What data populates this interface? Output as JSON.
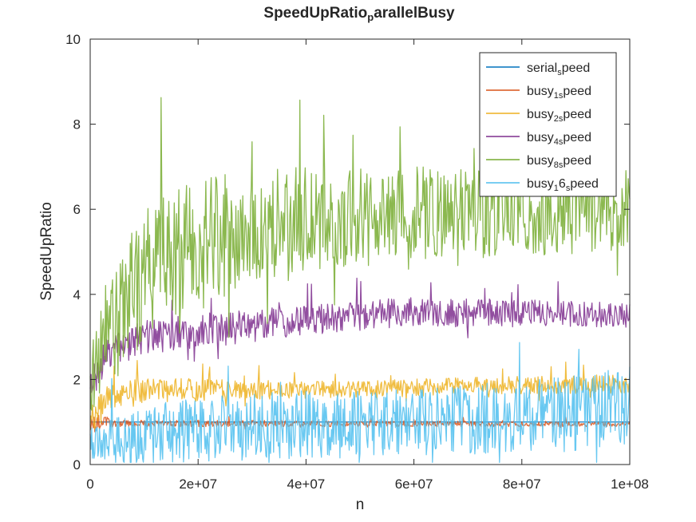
{
  "chart_data": {
    "type": "line",
    "title": {
      "main": "SpeedUpRatio",
      "sub": "p",
      "rest": "arallelBusy"
    },
    "xlabel": "n",
    "ylabel": "SpeedUpRatio",
    "xlim": [
      0,
      100000000
    ],
    "ylim": [
      0,
      10
    ],
    "xticks": [
      0,
      20000000,
      40000000,
      60000000,
      80000000,
      100000000
    ],
    "xtick_labels": [
      "0",
      "2e+07",
      "4e+07",
      "6e+07",
      "8e+07",
      "1e+08"
    ],
    "yticks": [
      0,
      2,
      4,
      6,
      8,
      10
    ],
    "ytick_labels": [
      "0",
      "2",
      "4",
      "6",
      "8",
      "10"
    ],
    "grid": false,
    "legend_position": "top-right",
    "points_per_series": 700,
    "series": [
      {
        "key": "serial",
        "legend": {
          "base": "serial",
          "sub": "s",
          "rest": "peed"
        },
        "color": "#0072bd",
        "envelope_x": [
          0,
          1000000,
          100000000
        ],
        "envelope_mean": [
          1,
          1,
          1
        ],
        "envelope_amplitude": [
          0,
          0,
          0
        ]
      },
      {
        "key": "busy1",
        "legend": {
          "base": "busy",
          "sub": "1s",
          "rest": "peed"
        },
        "color": "#d95319",
        "envelope_x": [
          0,
          2000000,
          5000000,
          100000000
        ],
        "envelope_mean": [
          0.9,
          1.0,
          0.97,
          0.95
        ],
        "envelope_amplitude": [
          0.3,
          0.15,
          0.08,
          0.06
        ]
      },
      {
        "key": "busy2",
        "legend": {
          "base": "busy",
          "sub": "2s",
          "rest": "peed"
        },
        "color": "#edb120",
        "envelope_x": [
          0,
          3000000,
          10000000,
          40000000,
          70000000,
          100000000
        ],
        "envelope_mean": [
          1.0,
          1.5,
          1.75,
          1.75,
          1.85,
          1.9
        ],
        "envelope_amplitude": [
          0.4,
          0.35,
          0.3,
          0.2,
          0.2,
          0.22
        ]
      },
      {
        "key": "busy4",
        "legend": {
          "base": "busy",
          "sub": "4s",
          "rest": "peed"
        },
        "color": "#7e2f8e",
        "envelope_x": [
          0,
          3000000,
          10000000,
          25000000,
          40000000,
          60000000,
          100000000
        ],
        "envelope_mean": [
          1.8,
          2.6,
          3.0,
          3.2,
          3.4,
          3.6,
          3.5
        ],
        "envelope_amplitude": [
          0.4,
          0.4,
          0.4,
          0.4,
          0.35,
          0.35,
          0.3
        ]
      },
      {
        "key": "busy8",
        "legend": {
          "base": "busy",
          "sub": "8s",
          "rest": "peed"
        },
        "color": "#77ac30",
        "envelope_x": [
          0,
          3000000,
          10000000,
          20000000,
          40000000,
          60000000,
          100000000
        ],
        "envelope_mean": [
          2.0,
          3.0,
          4.5,
          5.3,
          5.7,
          5.9,
          6.0
        ],
        "envelope_amplitude": [
          0.8,
          1.3,
          1.6,
          1.5,
          1.3,
          1.1,
          1.0
        ]
      },
      {
        "key": "busy16",
        "legend": {
          "base": "busy",
          "sub": "1",
          "rest": "6",
          "sub2": "s",
          "rest2": "peed"
        },
        "color": "#4dbeee",
        "envelope_x": [
          0,
          5000000,
          10000000,
          30000000,
          60000000,
          90000000,
          100000000
        ],
        "envelope_mean": [
          0.6,
          0.5,
          0.7,
          0.9,
          1.0,
          1.2,
          1.4
        ],
        "envelope_amplitude": [
          0.5,
          0.6,
          0.7,
          0.8,
          0.8,
          0.9,
          0.9
        ]
      }
    ]
  }
}
